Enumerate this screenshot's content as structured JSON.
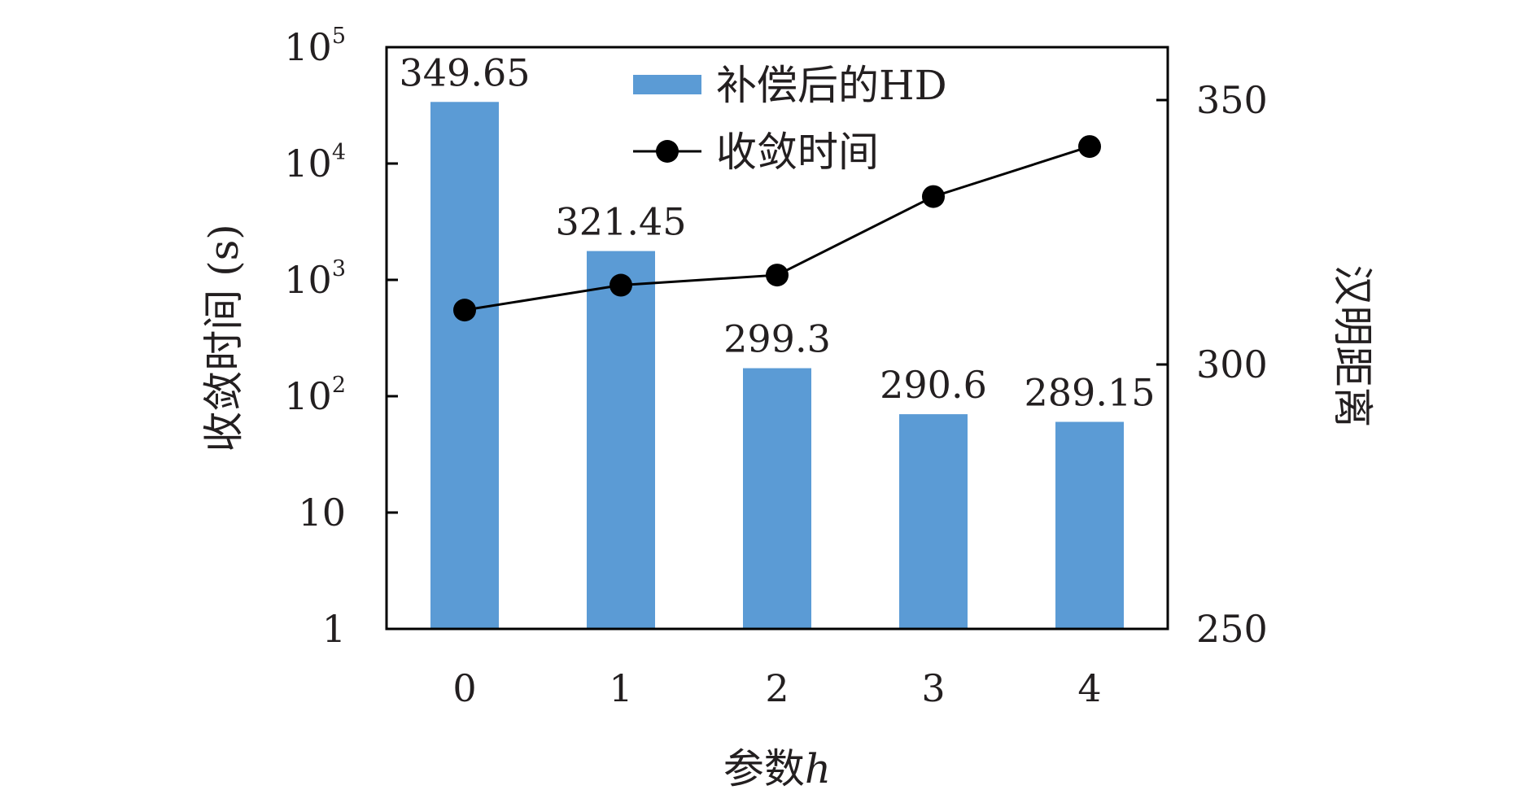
{
  "chart_data": {
    "type": "bar+line",
    "categories": [
      "0",
      "1",
      "2",
      "3",
      "4"
    ],
    "xlabel": "参数",
    "xlabel_var": "h",
    "ylabel_left": "收敛时间 (s)",
    "ylabel_right": "汉明距离",
    "left_axis": {
      "scale": "log",
      "range": [
        1,
        100000
      ],
      "ticks": [
        {
          "base": "1",
          "exp": ""
        },
        {
          "base": "10",
          "exp": ""
        },
        {
          "base": "10",
          "exp": "2"
        },
        {
          "base": "10",
          "exp": "3"
        },
        {
          "base": "10",
          "exp": "4"
        },
        {
          "base": "10",
          "exp": "5"
        }
      ]
    },
    "right_axis": {
      "scale": "linear",
      "range": [
        250,
        360
      ],
      "ticks": [
        "250",
        "300",
        "350"
      ]
    },
    "series": [
      {
        "name": "补偿后的HD",
        "type": "bar",
        "axis": "right",
        "color": "#5b9bd5",
        "values": [
          349.65,
          321.45,
          299.3,
          290.6,
          289.15
        ],
        "labels": [
          "349.65",
          "321.45",
          "299.3",
          "290.6",
          "289.15"
        ]
      },
      {
        "name": "收敛时间",
        "type": "line",
        "axis": "left",
        "color": "#000000",
        "marker": "circle",
        "values": [
          550,
          900,
          1100,
          5200,
          14000
        ]
      }
    ],
    "legend_position": "top-center",
    "grid": false
  }
}
